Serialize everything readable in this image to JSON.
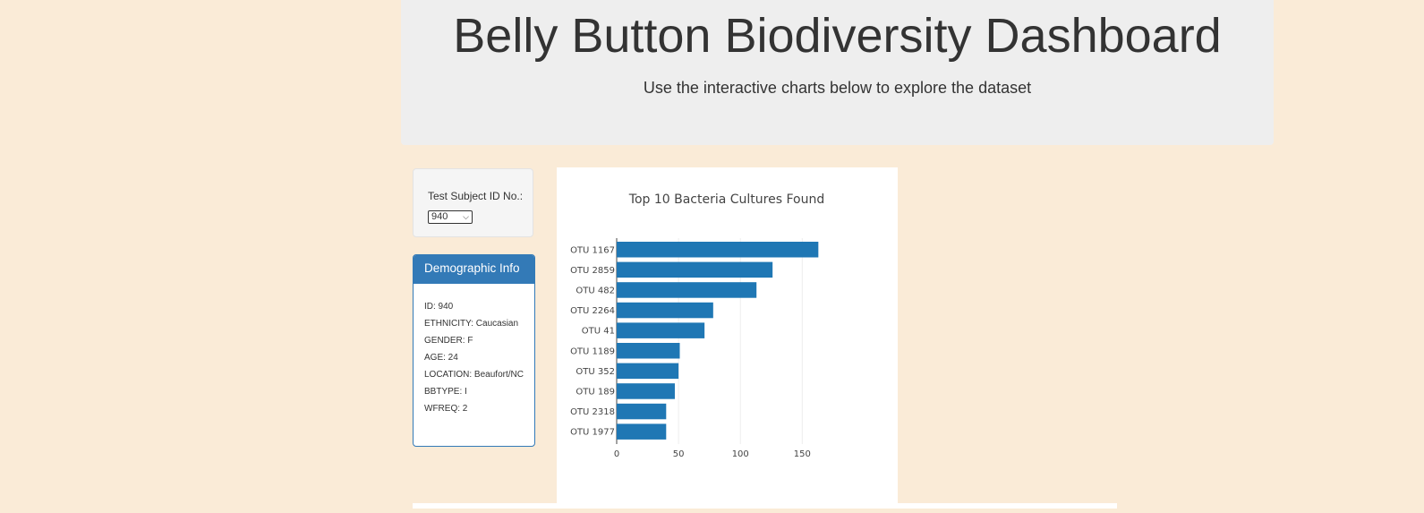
{
  "header": {
    "title": "Belly Button Biodiversity Dashboard",
    "subtitle": "Use the interactive charts below to explore the dataset"
  },
  "selector": {
    "label": "Test Subject ID No.:",
    "selected": "940"
  },
  "demographics": {
    "heading": "Demographic Info",
    "rows": [
      "ID: 940",
      "ETHNICITY: Caucasian",
      "GENDER: F",
      "AGE: 24",
      "LOCATION: Beaufort/NC",
      "BBTYPE: I",
      "WFREQ: 2"
    ]
  },
  "colors": {
    "background": "#faebd7",
    "jumbotron": "#eeeeee",
    "panel_primary": "#337ab7",
    "bar": "#1f77b4"
  },
  "chart_data": {
    "type": "bar",
    "orientation": "horizontal",
    "title": "Top 10 Bacteria Cultures Found",
    "categories": [
      "OTU 1167",
      "OTU 2859",
      "OTU 482",
      "OTU 2264",
      "OTU 41",
      "OTU 1189",
      "OTU 352",
      "OTU 189",
      "OTU 2318",
      "OTU 1977"
    ],
    "values": [
      163,
      126,
      113,
      78,
      71,
      51,
      50,
      47,
      40,
      40
    ],
    "xlim": [
      0,
      170
    ],
    "xticks": [
      0,
      50,
      100,
      150
    ],
    "grid": true,
    "legend": false
  }
}
